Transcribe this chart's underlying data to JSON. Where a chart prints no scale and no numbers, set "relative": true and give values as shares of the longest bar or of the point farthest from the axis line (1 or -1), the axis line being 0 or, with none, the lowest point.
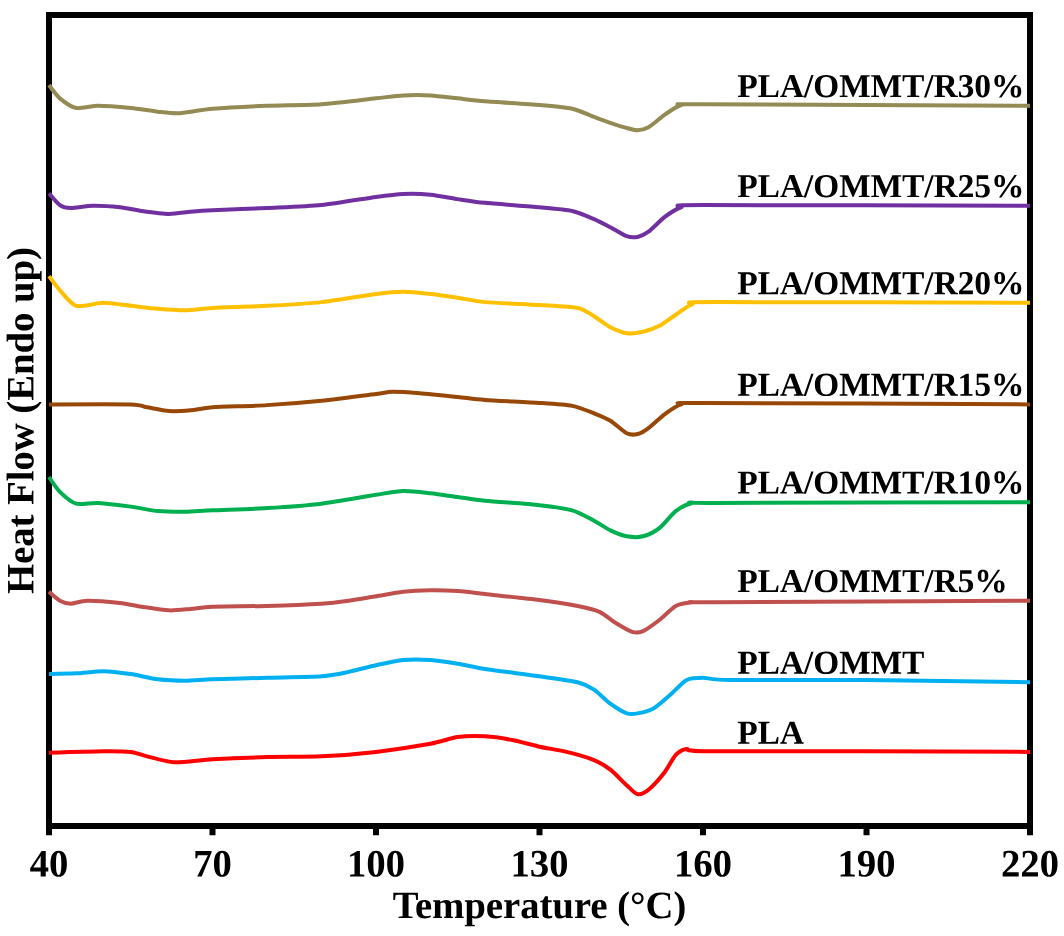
{
  "chart_data": {
    "type": "line",
    "relative": true,
    "xlabel": "Temperature (°C)",
    "ylabel": "Heat Flow (Endo up)",
    "xlim": [
      40,
      220
    ],
    "xticks": [
      40,
      70,
      100,
      130,
      160,
      190,
      220
    ],
    "grid": false,
    "marker": "none",
    "line_style": "solid",
    "series": [
      {
        "name": "PLA",
        "color": "#ff0000",
        "x": [
          40,
          50,
          55,
          58,
          63,
          70,
          80,
          90,
          100,
          110,
          115,
          120,
          125,
          130,
          135,
          140,
          143,
          146,
          148,
          150,
          153,
          155,
          157,
          160,
          190,
          220
        ],
        "values": [
          0.099,
          0.101,
          0.1,
          0.094,
          0.086,
          0.09,
          0.093,
          0.094,
          0.1,
          0.111,
          0.12,
          0.121,
          0.116,
          0.107,
          0.1,
          0.089,
          0.076,
          0.055,
          0.043,
          0.049,
          0.073,
          0.096,
          0.104,
          0.101,
          0.101,
          0.1
        ]
      },
      {
        "name": "PLA/OMMT",
        "color": "#00b0f0",
        "x": [
          40,
          45,
          50,
          55,
          60,
          65,
          70,
          80,
          90,
          95,
          100,
          105,
          110,
          115,
          120,
          130,
          137,
          140,
          143,
          146,
          148,
          151,
          154,
          157,
          160,
          165,
          190,
          220
        ],
        "values": [
          0.205,
          0.206,
          0.209,
          0.205,
          0.198,
          0.196,
          0.198,
          0.2,
          0.202,
          0.208,
          0.217,
          0.224,
          0.224,
          0.219,
          0.212,
          0.202,
          0.194,
          0.184,
          0.165,
          0.152,
          0.152,
          0.159,
          0.177,
          0.197,
          0.2,
          0.197,
          0.197,
          0.194
        ]
      },
      {
        "name": "PLA/OMMT/R5%",
        "color": "#c0504d",
        "x": [
          40,
          42,
          44,
          47,
          53,
          57,
          62,
          66,
          70,
          80,
          90,
          95,
          100,
          105,
          110,
          115,
          120,
          130,
          137,
          141,
          144,
          147,
          149,
          152,
          155,
          158,
          162,
          220
        ],
        "values": [
          0.316,
          0.304,
          0.3,
          0.304,
          0.301,
          0.296,
          0.291,
          0.293,
          0.296,
          0.297,
          0.3,
          0.304,
          0.31,
          0.316,
          0.318,
          0.317,
          0.313,
          0.305,
          0.297,
          0.289,
          0.274,
          0.262,
          0.263,
          0.278,
          0.297,
          0.302,
          0.302,
          0.304
        ]
      },
      {
        "name": "PLA/OMMT/R10%",
        "color": "#00b050",
        "x": [
          40,
          42,
          45,
          49,
          55,
          60,
          65,
          70,
          80,
          90,
          100,
          105,
          110,
          115,
          120,
          130,
          136,
          140,
          143,
          146,
          149,
          152,
          155,
          158,
          162,
          220
        ],
        "values": [
          0.471,
          0.451,
          0.435,
          0.436,
          0.431,
          0.425,
          0.424,
          0.426,
          0.429,
          0.435,
          0.447,
          0.452,
          0.449,
          0.444,
          0.439,
          0.433,
          0.426,
          0.412,
          0.399,
          0.391,
          0.391,
          0.402,
          0.425,
          0.436,
          0.436,
          0.437
        ]
      },
      {
        "name": "PLA/OMMT/R15%",
        "color": "#984806",
        "x": [
          40,
          55,
          58,
          62,
          66,
          70,
          80,
          90,
          100,
          103,
          108,
          115,
          120,
          130,
          136,
          140,
          143,
          146,
          148,
          150,
          153,
          156,
          160,
          220
        ],
        "values": [
          0.569,
          0.569,
          0.565,
          0.56,
          0.561,
          0.565,
          0.568,
          0.574,
          0.583,
          0.586,
          0.584,
          0.579,
          0.575,
          0.571,
          0.567,
          0.557,
          0.547,
          0.53,
          0.529,
          0.537,
          0.556,
          0.569,
          0.571,
          0.569
        ]
      },
      {
        "name": "PLA/OMMT/R20%",
        "color": "#ffc000",
        "x": [
          40,
          42,
          45,
          50,
          55,
          60,
          65,
          70,
          80,
          90,
          100,
          105,
          110,
          115,
          120,
          130,
          137,
          140,
          143,
          146,
          149,
          152,
          155,
          158,
          162,
          220
        ],
        "values": [
          0.742,
          0.723,
          0.702,
          0.706,
          0.702,
          0.698,
          0.696,
          0.699,
          0.702,
          0.707,
          0.718,
          0.721,
          0.718,
          0.713,
          0.707,
          0.703,
          0.699,
          0.688,
          0.673,
          0.665,
          0.667,
          0.675,
          0.69,
          0.704,
          0.707,
          0.706
        ]
      },
      {
        "name": "PLA/OMMT/R25%",
        "color": "#7030a0",
        "x": [
          40,
          42,
          44,
          48,
          53,
          57,
          62,
          66,
          70,
          80,
          90,
          100,
          105,
          110,
          115,
          120,
          130,
          136,
          140,
          143,
          146,
          148,
          150,
          153,
          156,
          160,
          220
        ],
        "values": [
          0.854,
          0.838,
          0.834,
          0.837,
          0.835,
          0.83,
          0.826,
          0.829,
          0.831,
          0.834,
          0.838,
          0.849,
          0.853,
          0.852,
          0.846,
          0.841,
          0.835,
          0.83,
          0.819,
          0.808,
          0.796,
          0.795,
          0.802,
          0.822,
          0.835,
          0.838,
          0.837
        ]
      },
      {
        "name": "PLA/OMMT/R30%",
        "color": "#948a54",
        "x": [
          40,
          42,
          45,
          49,
          55,
          60,
          64,
          70,
          80,
          90,
          100,
          105,
          110,
          115,
          120,
          130,
          136,
          140,
          143,
          146,
          148,
          150,
          153,
          156,
          160,
          220
        ],
        "values": [
          1.0,
          0.982,
          0.969,
          0.972,
          0.969,
          0.964,
          0.962,
          0.968,
          0.972,
          0.974,
          0.982,
          0.986,
          0.986,
          0.982,
          0.978,
          0.973,
          0.968,
          0.957,
          0.949,
          0.942,
          0.939,
          0.943,
          0.96,
          0.973,
          0.974,
          0.972
        ]
      }
    ]
  }
}
